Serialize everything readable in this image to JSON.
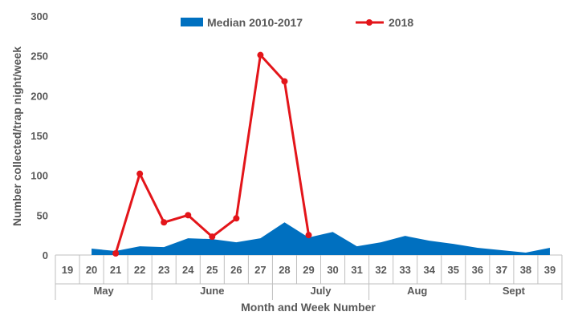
{
  "chart_data": {
    "type": "line",
    "xlabel": "Month and Week Number",
    "ylabel": "Number collected/trap night/week",
    "ylim": [
      0,
      300
    ],
    "yticks": [
      "0",
      "50",
      "100",
      "150",
      "200",
      "250",
      "300"
    ],
    "categories": [
      "19",
      "20",
      "21",
      "22",
      "23",
      "24",
      "25",
      "26",
      "27",
      "28",
      "29",
      "30",
      "31",
      "32",
      "33",
      "34",
      "35",
      "36",
      "37",
      "38",
      "39"
    ],
    "months": [
      {
        "label": "May",
        "from": "19",
        "to": "22"
      },
      {
        "label": "June",
        "from": "23",
        "to": "27"
      },
      {
        "label": "July",
        "from": "28",
        "to": "31"
      },
      {
        "label": "Aug",
        "from": "32",
        "to": "35"
      },
      {
        "label": "Sept",
        "from": "36",
        "to": "39"
      }
    ],
    "grid": false,
    "legend_position": "top",
    "series": [
      {
        "name": "Median 2010-2017",
        "kind": "area",
        "color": "#0070c0",
        "values": [
          null,
          8,
          5,
          11,
          10,
          21,
          20,
          16,
          21,
          41,
          22,
          29,
          11,
          16,
          24,
          18,
          14,
          9,
          6,
          3,
          9
        ]
      },
      {
        "name": "2018",
        "kind": "line",
        "color": "#e3151a",
        "values": [
          null,
          null,
          2,
          102,
          41,
          50,
          23,
          46,
          251,
          218,
          25,
          null,
          null,
          null,
          null,
          null,
          null,
          null,
          null,
          null,
          null
        ]
      }
    ]
  }
}
